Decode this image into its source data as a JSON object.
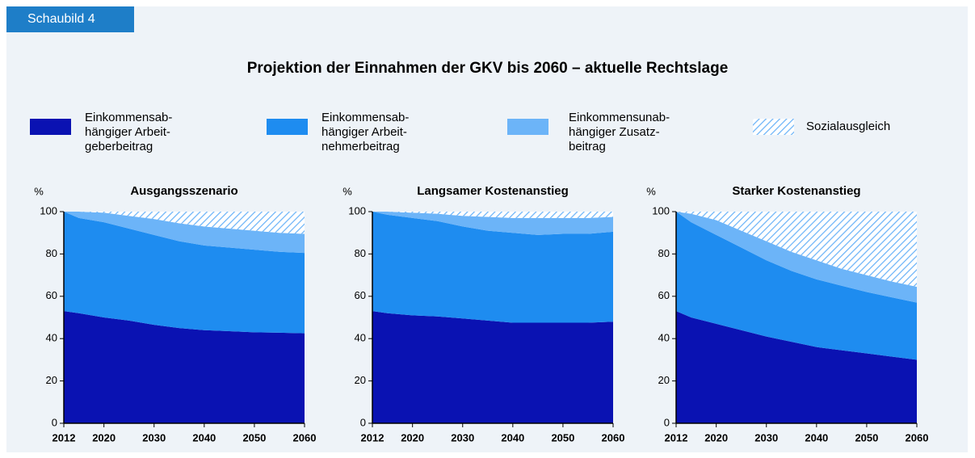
{
  "label": "Schaubild 4",
  "title": "Projektion der Einnahmen der GKV bis 2060 – aktuelle Rechtslage",
  "chart_data": [
    {
      "type": "stacked_area",
      "title": "Ausgangsszenario",
      "y_label": "%",
      "x": [
        2012,
        2015,
        2020,
        2025,
        2030,
        2035,
        2040,
        2045,
        2050,
        2055,
        2060
      ],
      "xlim": [
        2012,
        2060
      ],
      "xticks": [
        2012,
        2020,
        2030,
        2040,
        2050,
        2060
      ],
      "ylim": [
        0,
        100
      ],
      "yticks": [
        0,
        20,
        40,
        60,
        80,
        100
      ],
      "series": [
        {
          "name": "Einkommensab-\nhängiger Arbeit-\ngeberbeitrag",
          "color": "#0a12b2",
          "values": [
            53,
            52,
            50,
            48.5,
            46.5,
            45,
            44,
            43.5,
            43,
            42.8,
            42.5
          ]
        },
        {
          "name": "Einkommensab-\nhängiger Arbeit-\nnehmerbeitrag",
          "color": "#1e8cf0",
          "values": [
            47,
            45,
            45,
            43.5,
            42.5,
            41,
            40,
            39.5,
            39,
            38.2,
            38
          ]
        },
        {
          "name": "Einkommensunab-\nhängiger Zusatz-\nbeitrag",
          "color": "#6cb4f8",
          "values": [
            0,
            3,
            4.5,
            6,
            7.5,
            8.5,
            9,
            9,
            9,
            9,
            9
          ]
        },
        {
          "name": "Sozialausgleich",
          "color": "#6cb4f8",
          "hatch": true,
          "values": [
            0,
            0,
            0.5,
            2,
            3.5,
            5.5,
            7,
            8,
            9,
            10,
            10.5
          ]
        }
      ]
    },
    {
      "type": "stacked_area",
      "title": "Langsamer Kostenanstieg",
      "y_label": "%",
      "x": [
        2012,
        2015,
        2020,
        2025,
        2030,
        2035,
        2040,
        2045,
        2050,
        2055,
        2060
      ],
      "xlim": [
        2012,
        2060
      ],
      "xticks": [
        2012,
        2020,
        2030,
        2040,
        2050,
        2060
      ],
      "ylim": [
        0,
        100
      ],
      "yticks": [
        0,
        20,
        40,
        60,
        80,
        100
      ],
      "series": [
        {
          "values": [
            53,
            52,
            51,
            50.5,
            49.5,
            48.5,
            47.5,
            47.5,
            47.5,
            47.5,
            48
          ]
        },
        {
          "values": [
            47,
            46.5,
            46,
            45,
            43.5,
            42.5,
            42.5,
            41.5,
            42,
            42,
            42.5
          ]
        },
        {
          "values": [
            0,
            1.5,
            2.5,
            3.5,
            5,
            6.5,
            7,
            8,
            7.5,
            7.5,
            7
          ]
        },
        {
          "values": [
            0,
            0,
            0.5,
            1,
            2,
            2.5,
            3,
            3,
            3,
            3,
            2.5
          ]
        }
      ]
    },
    {
      "type": "stacked_area",
      "title": "Starker Kostenanstieg",
      "y_label": "%",
      "x": [
        2012,
        2015,
        2020,
        2025,
        2030,
        2035,
        2040,
        2045,
        2050,
        2055,
        2060
      ],
      "xlim": [
        2012,
        2060
      ],
      "xticks": [
        2012,
        2020,
        2030,
        2040,
        2050,
        2060
      ],
      "ylim": [
        0,
        100
      ],
      "yticks": [
        0,
        20,
        40,
        60,
        80,
        100
      ],
      "series": [
        {
          "values": [
            53,
            50,
            47,
            44,
            41,
            38.5,
            36,
            34.5,
            33,
            31.5,
            30
          ]
        },
        {
          "values": [
            47,
            45,
            42,
            39,
            36,
            33.5,
            32,
            30.5,
            29,
            28,
            27
          ]
        },
        {
          "values": [
            0,
            4,
            7,
            8,
            9,
            9,
            9,
            8,
            8,
            7.5,
            7.5
          ]
        },
        {
          "values": [
            0,
            1,
            4,
            9,
            14,
            19,
            23,
            27,
            30,
            33,
            35.5
          ]
        }
      ]
    }
  ]
}
